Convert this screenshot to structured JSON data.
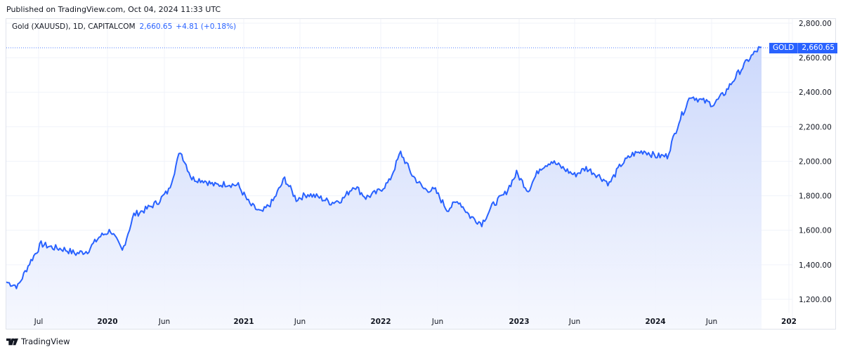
{
  "header": {
    "published": "Published on TradingView.com, Oct 04, 2024 11:33 UTC"
  },
  "legend": {
    "symbol_desc": "Gold (XAUUSD), 1D, CAPITALCOM",
    "last_value": "2,660.65",
    "change": "+4.81 (+0.18%)"
  },
  "price_tag": {
    "symbol": "GOLD",
    "value": "2,660.65"
  },
  "colors": {
    "line": "#2962ff",
    "fill_top": "#c9d6fb",
    "fill_bottom": "#f5f7fe",
    "grid": "#f0f3fa",
    "tag_bg": "#2962ff"
  },
  "footer": {
    "brand": "TradingView"
  },
  "chart_data": {
    "type": "area",
    "title": "Gold (XAUUSD), 1D, CAPITALCOM",
    "xlabel": "",
    "ylabel": "",
    "ylim": [
      1150,
      2850
    ],
    "grid": true,
    "legend_position": "top-left",
    "y_ticks": [
      "2,800.00",
      "2,600.00",
      "2,400.00",
      "2,200.00",
      "2,000.00",
      "1,800.00",
      "1,600.00",
      "1,400.00",
      "1,200.00"
    ],
    "x_ticks": [
      "Jul",
      "2020",
      "Jun",
      "2021",
      "Jun",
      "2022",
      "Jun",
      "2023",
      "Jun",
      "2024",
      "Jun",
      "202"
    ],
    "last_price": 2660.65,
    "change": 4.81,
    "change_pct": 0.18,
    "series": [
      {
        "name": "XAUUSD",
        "x": [
          "2019-05",
          "2019-06",
          "2019-07",
          "2019-08",
          "2019-09",
          "2019-10",
          "2019-11",
          "2019-12",
          "2020-01",
          "2020-02",
          "2020-03",
          "2020-04",
          "2020-05",
          "2020-06",
          "2020-07",
          "2020-08",
          "2020-09",
          "2020-10",
          "2020-11",
          "2020-12",
          "2021-01",
          "2021-02",
          "2021-03",
          "2021-04",
          "2021-05",
          "2021-06",
          "2021-07",
          "2021-08",
          "2021-09",
          "2021-10",
          "2021-11",
          "2021-12",
          "2022-01",
          "2022-02",
          "2022-03",
          "2022-04",
          "2022-05",
          "2022-06",
          "2022-07",
          "2022-08",
          "2022-09",
          "2022-10",
          "2022-11",
          "2022-12",
          "2023-01",
          "2023-02",
          "2023-03",
          "2023-04",
          "2023-05",
          "2023-06",
          "2023-07",
          "2023-08",
          "2023-09",
          "2023-10",
          "2023-11",
          "2023-12",
          "2024-01",
          "2024-02",
          "2024-03",
          "2024-04",
          "2024-05",
          "2024-06",
          "2024-07",
          "2024-08",
          "2024-09",
          "2024-10"
        ],
        "values": [
          1300,
          1275,
          1410,
          1520,
          1500,
          1490,
          1465,
          1480,
          1560,
          1600,
          1480,
          1690,
          1720,
          1760,
          1830,
          2060,
          1900,
          1890,
          1860,
          1870,
          1860,
          1750,
          1700,
          1770,
          1900,
          1780,
          1810,
          1790,
          1760,
          1780,
          1860,
          1790,
          1820,
          1880,
          2050,
          1920,
          1840,
          1830,
          1720,
          1770,
          1680,
          1640,
          1750,
          1810,
          1930,
          1830,
          1960,
          2000,
          1960,
          1920,
          1960,
          1920,
          1870,
          1980,
          2040,
          2060,
          2030,
          2030,
          2230,
          2380,
          2350,
          2330,
          2400,
          2500,
          2590,
          2660
        ]
      }
    ]
  }
}
